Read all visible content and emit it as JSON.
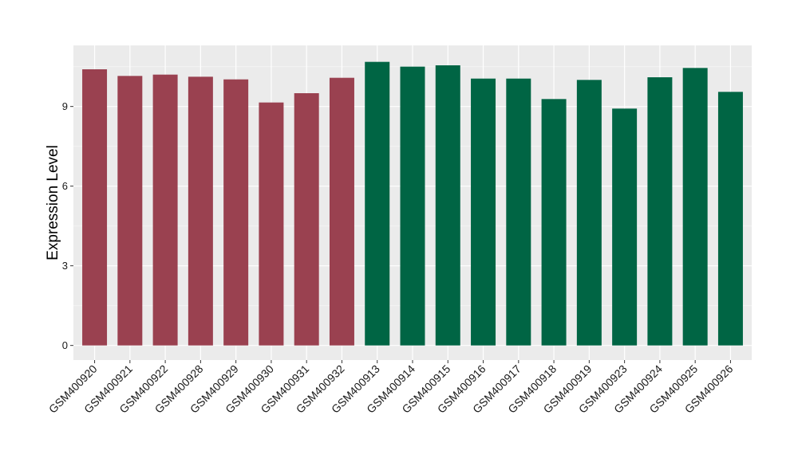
{
  "chart_data": {
    "type": "bar",
    "title": "",
    "xlabel": "",
    "ylabel": "Expression Level",
    "ylim": [
      -0.55,
      11.3
    ],
    "yticks": [
      0,
      3,
      6,
      9
    ],
    "grid": true,
    "legend": "none",
    "colors": {
      "group_a": "#9a4150",
      "group_b": "#006544",
      "panel_bg": "#ebebeb",
      "grid_major": "#ffffff",
      "grid_minor": "#f5f5f5"
    },
    "categories": [
      "GSM400920",
      "GSM400921",
      "GSM400922",
      "GSM400928",
      "GSM400929",
      "GSM400930",
      "GSM400931",
      "GSM400932",
      "GSM400913",
      "GSM400914",
      "GSM400915",
      "GSM400916",
      "GSM400917",
      "GSM400918",
      "GSM400919",
      "GSM400923",
      "GSM400924",
      "GSM400925",
      "GSM400926"
    ],
    "values": [
      10.4,
      10.15,
      10.2,
      10.12,
      10.02,
      9.15,
      9.5,
      10.08,
      10.68,
      10.5,
      10.55,
      10.05,
      10.05,
      9.28,
      10.0,
      8.92,
      10.1,
      10.45,
      9.55
    ],
    "groups": [
      "group_a",
      "group_a",
      "group_a",
      "group_a",
      "group_a",
      "group_a",
      "group_a",
      "group_a",
      "group_b",
      "group_b",
      "group_b",
      "group_b",
      "group_b",
      "group_b",
      "group_b",
      "group_b",
      "group_b",
      "group_b",
      "group_b"
    ]
  }
}
